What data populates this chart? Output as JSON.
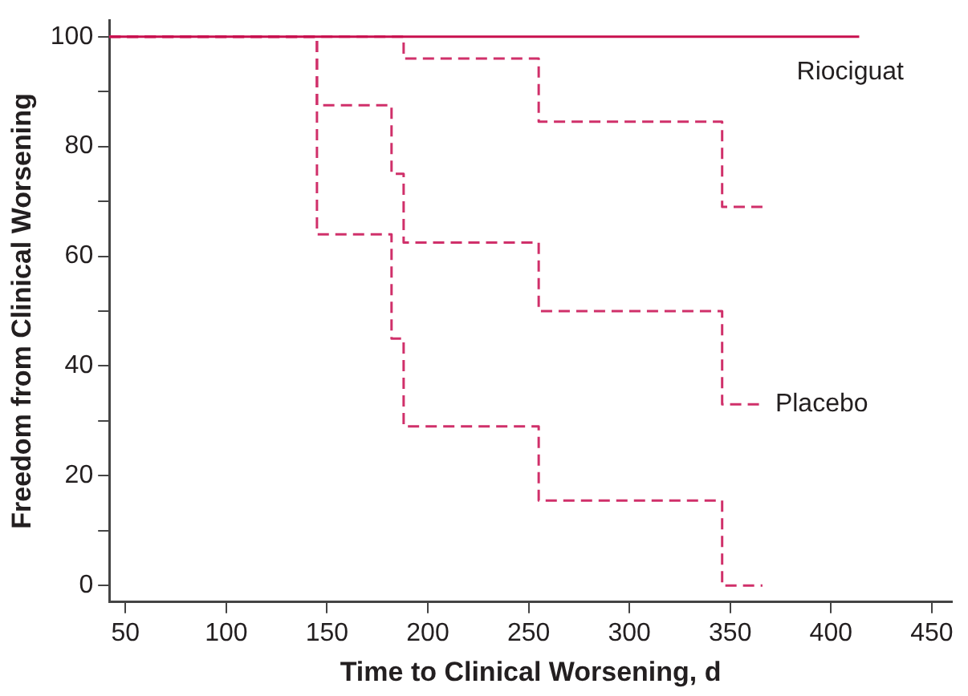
{
  "chart_data": {
    "type": "step",
    "xlabel": "Time to Clinical Worsening, d",
    "ylabel": "Freedom from Clinical Worsening",
    "xlim": [
      42,
      460
    ],
    "xticks": [
      50,
      100,
      150,
      200,
      250,
      300,
      350,
      400,
      450
    ],
    "ylim": [
      -3,
      103
    ],
    "yticks": [
      0,
      {
        "value": 10,
        "label": null
      },
      20,
      {
        "value": 30,
        "label": null
      },
      40,
      {
        "value": 50,
        "label": null
      },
      60,
      {
        "value": 70,
        "label": null
      },
      80,
      {
        "value": 90,
        "label": null
      },
      100
    ],
    "grid": false,
    "legend": false,
    "series": [
      {
        "name": "Riociguat",
        "color": "#c8104e",
        "line_style": "solid",
        "x": [
          42,
          414
        ],
        "values": [
          100,
          100
        ]
      },
      {
        "color": "#d0306a",
        "line_style": "dashed",
        "x": [
          42,
          145,
          182,
          188,
          255,
          346,
          366
        ],
        "values": [
          100,
          100,
          100,
          96,
          84.5,
          69,
          69
        ]
      },
      {
        "name": "Placebo",
        "color": "#d0306a",
        "line_style": "dashed",
        "x": [
          42,
          145,
          182,
          188,
          255,
          346,
          366
        ],
        "values": [
          100,
          87.5,
          75,
          62.5,
          50,
          33,
          33
        ]
      },
      {
        "color": "#d0306a",
        "line_style": "dashed",
        "x": [
          42,
          145,
          182,
          188,
          255,
          346,
          366
        ],
        "values": [
          100,
          64,
          45,
          29,
          15.5,
          0,
          0
        ]
      }
    ]
  }
}
